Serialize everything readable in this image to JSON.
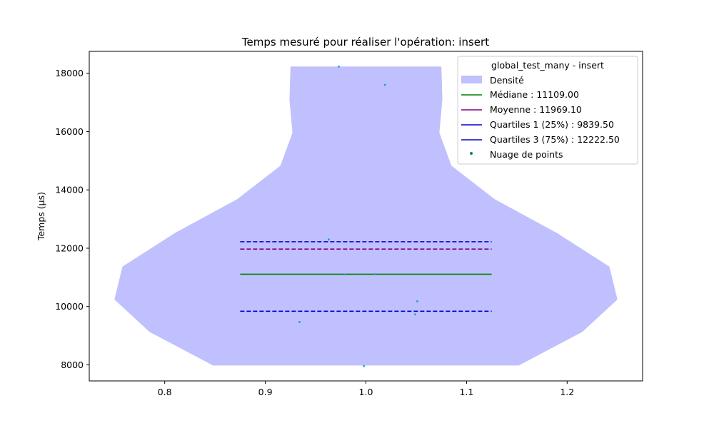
{
  "chart_data": {
    "type": "violin",
    "title": "Temps mesuré pour réaliser l'opération: insert",
    "xlabel": "",
    "ylabel": "Temps (µs)",
    "xlim": [
      0.725,
      1.275
    ],
    "ylim": [
      7450,
      18750
    ],
    "x_ticks": [
      0.8,
      0.9,
      1.0,
      1.1,
      1.2
    ],
    "x_tick_labels": [
      "0.8",
      "0.9",
      "1.0",
      "1.1",
      "1.2"
    ],
    "y_ticks": [
      8000,
      10000,
      12000,
      14000,
      16000,
      18000
    ],
    "y_tick_labels": [
      "8000",
      "10000",
      "12000",
      "14000",
      "16000",
      "18000"
    ],
    "grid": false,
    "legend_position": "upper right",
    "legend_title": "global_test_many - insert",
    "density": {
      "name": "Densité",
      "color": "#c0c0ff",
      "center": 1.0,
      "profile": [
        {
          "y": 7980,
          "half_width": 0.152
        },
        {
          "y": 9130,
          "half_width": 0.215
        },
        {
          "y": 10240,
          "half_width": 0.25
        },
        {
          "y": 11370,
          "half_width": 0.242
        },
        {
          "y": 12520,
          "half_width": 0.19
        },
        {
          "y": 13680,
          "half_width": 0.128
        },
        {
          "y": 14830,
          "half_width": 0.085
        },
        {
          "y": 15960,
          "half_width": 0.073
        },
        {
          "y": 17100,
          "half_width": 0.076
        },
        {
          "y": 18230,
          "half_width": 0.075
        }
      ]
    },
    "lines": [
      {
        "name": "Médiane : 11109.00",
        "value": 11109.0,
        "color": "#008000",
        "style": "solid",
        "x_range": [
          0.875,
          1.125
        ]
      },
      {
        "name": "Moyenne : 11969.10",
        "value": 11969.1,
        "color": "#800080",
        "style": "dashed",
        "x_range": [
          0.875,
          1.125
        ]
      },
      {
        "name": "Quartiles 1 (25%) : 9839.50",
        "value": 9839.5,
        "color": "#0000cc",
        "style": "dashed",
        "x_range": [
          0.875,
          1.125
        ]
      },
      {
        "name": "Quartiles 3 (75%) : 12222.50",
        "value": 12222.5,
        "color": "#0000cc",
        "style": "dashed",
        "x_range": [
          0.875,
          1.125
        ]
      }
    ],
    "scatter": {
      "name": "Nuage de points",
      "color": "#1f9fbf",
      "legend_color": "#008080",
      "points": [
        {
          "x": 0.973,
          "y": 18230
        },
        {
          "x": 1.019,
          "y": 17600
        },
        {
          "x": 0.963,
          "y": 12300
        },
        {
          "x": 0.979,
          "y": 11100
        },
        {
          "x": 1.009,
          "y": 11110
        },
        {
          "x": 1.051,
          "y": 10180
        },
        {
          "x": 1.049,
          "y": 9730
        },
        {
          "x": 0.934,
          "y": 9470
        },
        {
          "x": 0.998,
          "y": 7960
        }
      ]
    }
  }
}
